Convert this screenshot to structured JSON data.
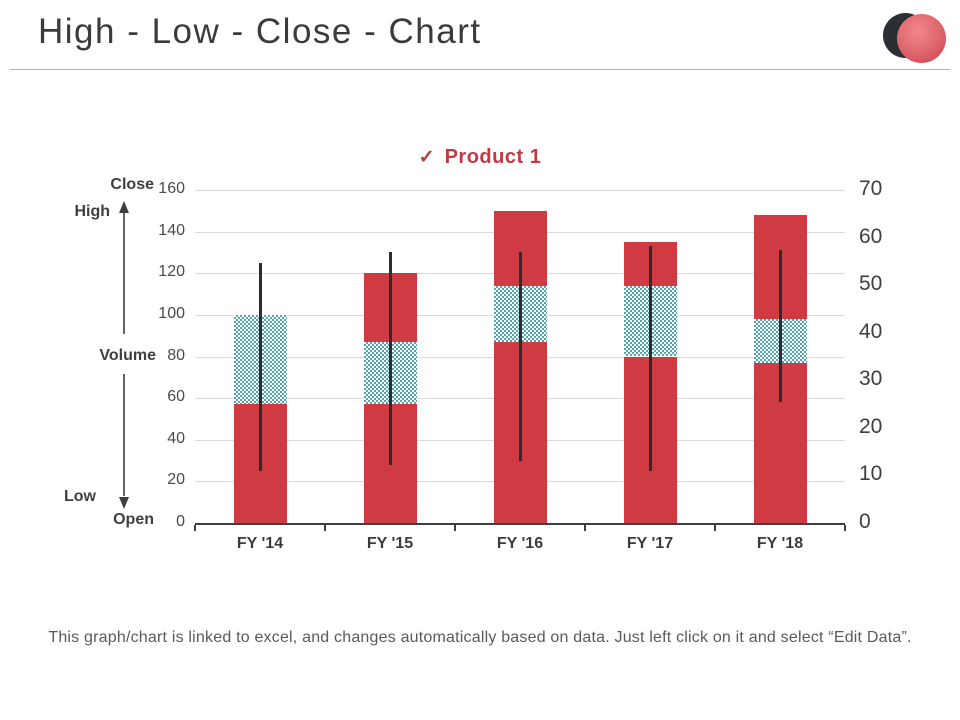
{
  "slide": {
    "title": "High - Low - Close - Chart",
    "note": "This graph/chart is linked to excel, and changes automatically based on data. Just left click on it and select “Edit Data”."
  },
  "chart_data": {
    "type": "bar",
    "subtype": "stacked-bars-with-high-low-lines",
    "title": "",
    "legend": {
      "marker_glyph": "✓",
      "label": "Product 1",
      "color": "#c23a42",
      "position": "top-center"
    },
    "categories": [
      "FY '14",
      "FY '15",
      "FY '16",
      "FY '17",
      "FY '18"
    ],
    "series": [
      {
        "name": "open-to-volume-segment",
        "style": "solid-red",
        "values": [
          57,
          57,
          87,
          80,
          77
        ]
      },
      {
        "name": "volume-band-segment",
        "style": "checker-teal",
        "values": [
          43,
          30,
          27,
          34,
          21
        ]
      },
      {
        "name": "volume-to-close-segment",
        "style": "solid-red",
        "values": [
          0,
          33,
          36,
          21,
          50
        ]
      }
    ],
    "bar_totals": [
      100,
      120,
      150,
      135,
      148
    ],
    "high_low_lines": [
      {
        "low": 25,
        "high": 125
      },
      {
        "low": 28,
        "high": 130
      },
      {
        "low": 30,
        "high": 130
      },
      {
        "low": 25,
        "high": 133
      },
      {
        "low": 58,
        "high": 131
      }
    ],
    "left_axis": {
      "min": 0,
      "max": 160,
      "step": 20,
      "ticks": [
        0,
        20,
        40,
        60,
        80,
        100,
        120,
        140,
        160
      ]
    },
    "right_axis": {
      "min": 0,
      "max": 70,
      "step": 10,
      "ticks": [
        0,
        10,
        20,
        30,
        40,
        50,
        60,
        70
      ]
    },
    "grid": true,
    "annotations": {
      "close": "Close",
      "high": "High",
      "volume": "Volume",
      "low": "Low",
      "open": "Open"
    },
    "colors": {
      "bar_red": "#cf3a43",
      "checker_teal": "#4fa7b0",
      "high_low_line": "#2d2d2d",
      "gridline": "#d9d9d9",
      "axis": "#404040",
      "legend_red": "#c23a42",
      "logo_dark": "#2b2e33",
      "logo_red": "#d4505a"
    }
  }
}
